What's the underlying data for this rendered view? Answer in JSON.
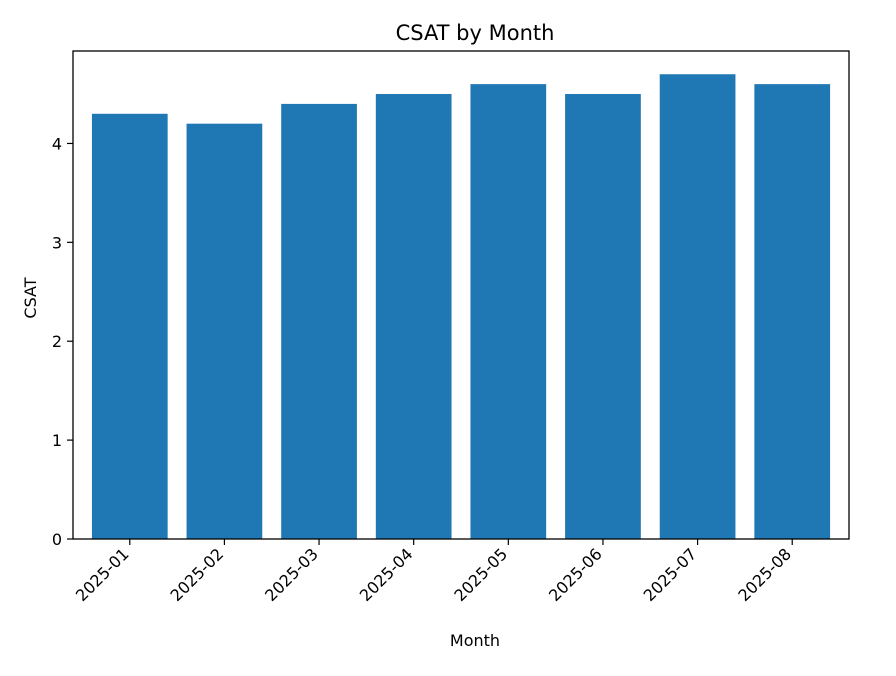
{
  "chart_data": {
    "type": "bar",
    "title": "CSAT by Month",
    "xlabel": "Month",
    "ylabel": "CSAT",
    "categories": [
      "2025-01",
      "2025-02",
      "2025-03",
      "2025-04",
      "2025-05",
      "2025-06",
      "2025-07",
      "2025-08"
    ],
    "values": [
      4.3,
      4.2,
      4.4,
      4.5,
      4.6,
      4.5,
      4.7,
      4.6
    ],
    "ylim": [
      0,
      4.935
    ],
    "yticks": [
      0,
      1,
      2,
      3,
      4
    ],
    "ytick_labels": [
      "0",
      "1",
      "2",
      "3",
      "4"
    ],
    "grid": false,
    "legend": false,
    "bar_color": "#1f77b4"
  }
}
